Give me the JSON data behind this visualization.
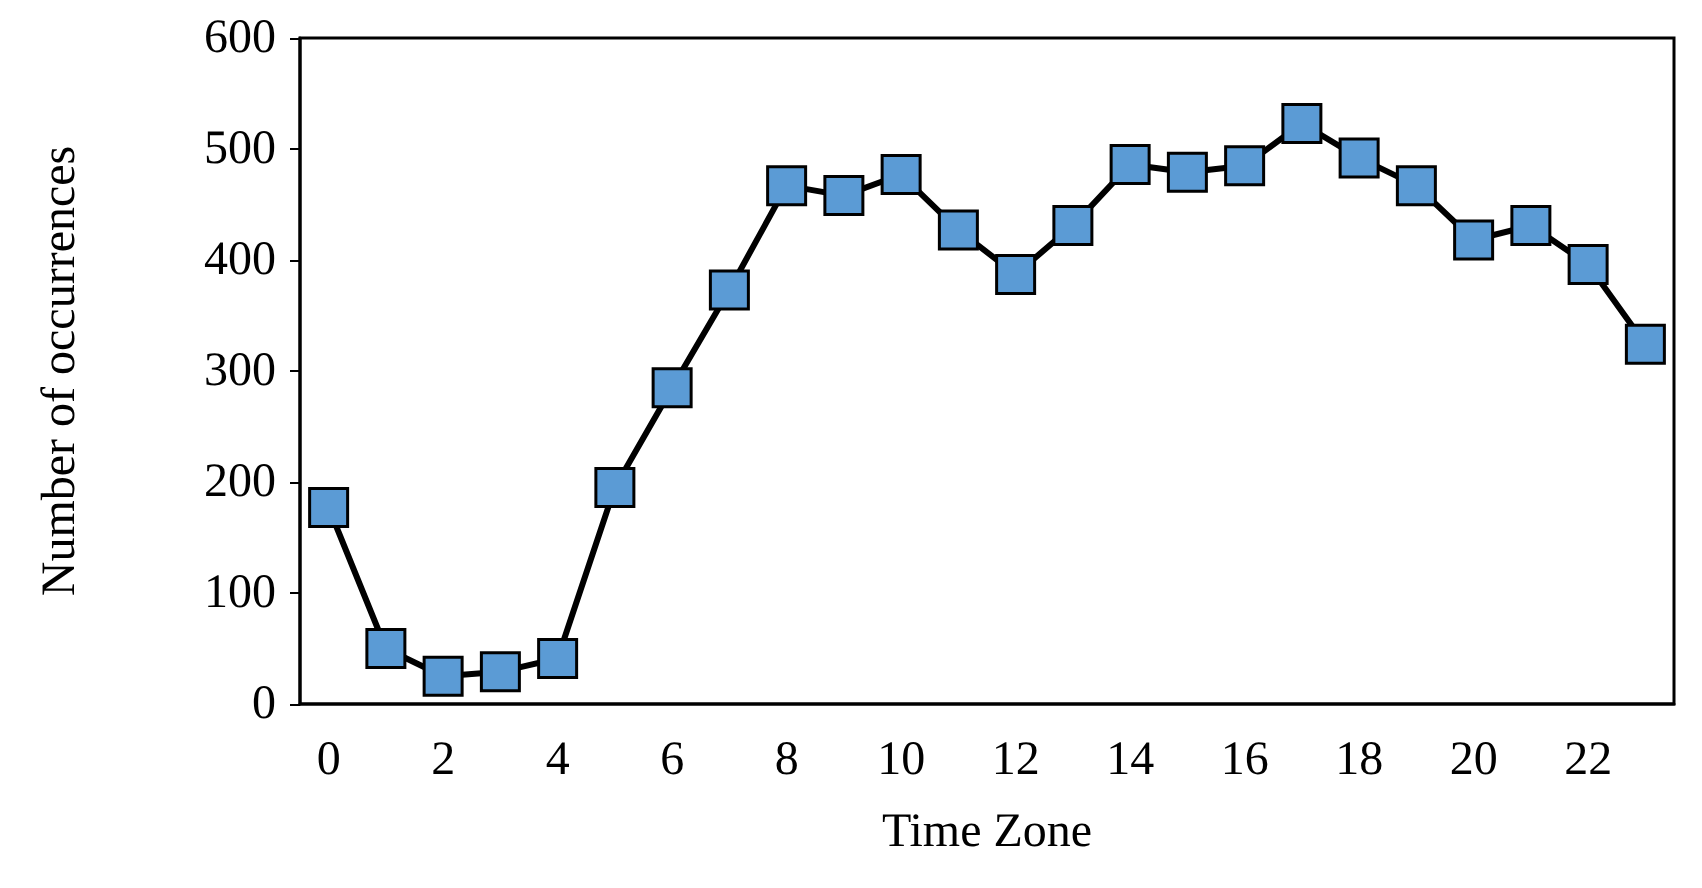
{
  "chart_data": {
    "type": "line",
    "xlabel": "Time Zone",
    "ylabel": "Number of occurrences",
    "categories": [
      "0",
      null,
      "2",
      null,
      "4",
      null,
      "6",
      null,
      "8",
      null,
      "10",
      null,
      "12",
      null,
      "14",
      null,
      "16",
      null,
      "18",
      null,
      "20",
      null,
      "22",
      null
    ],
    "series": [
      {
        "color": "#5b9bd5",
        "values": [
          177,
          50,
          25,
          29,
          41,
          195,
          285,
          373,
          467,
          458,
          477,
          427,
          387,
          431,
          486,
          479,
          485,
          523,
          492,
          467,
          418,
          431,
          396,
          324
        ]
      }
    ],
    "ylim": [
      0,
      600
    ],
    "yticks": [
      0,
      100,
      200,
      300,
      400,
      500,
      600
    ],
    "marker": "square",
    "line_style": "solid"
  }
}
